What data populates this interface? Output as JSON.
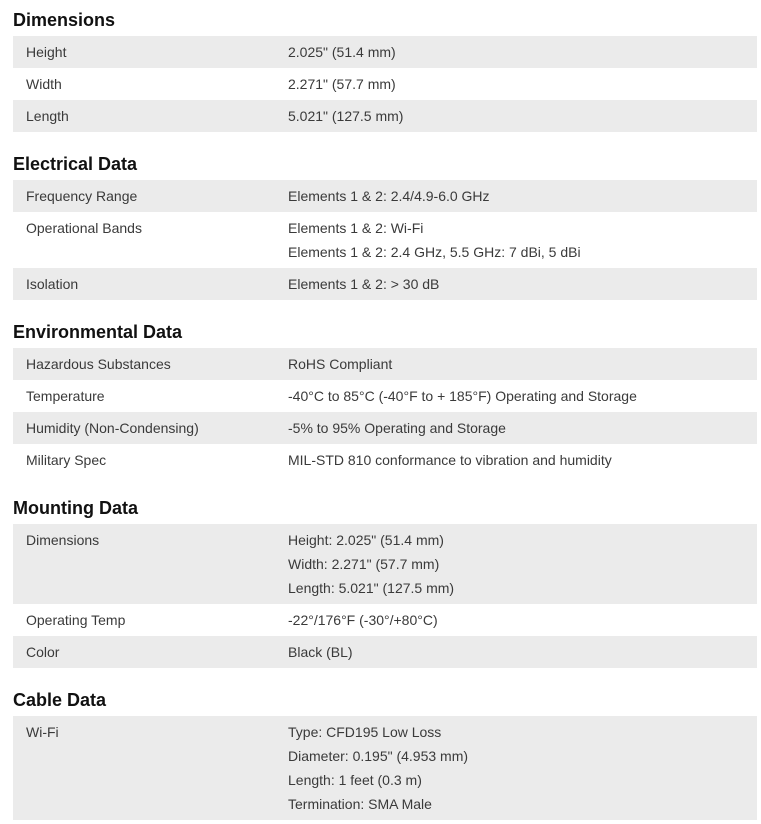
{
  "sections": [
    {
      "title": "Dimensions",
      "rows": [
        {
          "label": "Height",
          "values": [
            "2.025\" (51.4 mm)"
          ]
        },
        {
          "label": "Width",
          "values": [
            "2.271\" (57.7 mm)"
          ]
        },
        {
          "label": "Length",
          "values": [
            "5.021\" (127.5 mm)"
          ]
        }
      ]
    },
    {
      "title": "Electrical Data",
      "rows": [
        {
          "label": "Frequency Range",
          "values": [
            "Elements 1 & 2: 2.4/4.9-6.0 GHz"
          ]
        },
        {
          "label": "Operational Bands",
          "values": [
            "Elements 1 & 2: Wi-Fi",
            "Elements 1 & 2: 2.4 GHz, 5.5 GHz: 7 dBi, 5 dBi"
          ]
        },
        {
          "label": "Isolation",
          "values": [
            "Elements 1 & 2: > 30 dB"
          ]
        }
      ]
    },
    {
      "title": "Environmental Data",
      "rows": [
        {
          "label": "Hazardous Substances",
          "values": [
            "RoHS Compliant"
          ]
        },
        {
          "label": "Temperature",
          "values": [
            "-40°C to 85°C (-40°F to + 185°F) Operating and Storage"
          ]
        },
        {
          "label": "Humidity (Non-Condensing)",
          "values": [
            "-5% to 95% Operating and Storage"
          ]
        },
        {
          "label": "Military Spec",
          "values": [
            "MIL-STD 810 conformance to vibration and humidity"
          ]
        }
      ]
    },
    {
      "title": "Mounting Data",
      "rows": [
        {
          "label": "Dimensions",
          "values": [
            "Height: 2.025\" (51.4 mm)",
            "Width: 2.271\" (57.7 mm)",
            "Length: 5.021\" (127.5 mm)"
          ]
        },
        {
          "label": "Operating Temp",
          "values": [
            "-22°/176°F (-30°/+80°C)"
          ]
        },
        {
          "label": "Color",
          "values": [
            "Black (BL)"
          ]
        }
      ]
    },
    {
      "title": "Cable Data",
      "rows": [
        {
          "label": "Wi-Fi",
          "values": [
            "Type: CFD195 Low Loss",
            "Diameter: 0.195\" (4.953 mm)",
            "Length: 1 feet (0.3 m)",
            "Termination: SMA Male"
          ]
        }
      ]
    }
  ]
}
